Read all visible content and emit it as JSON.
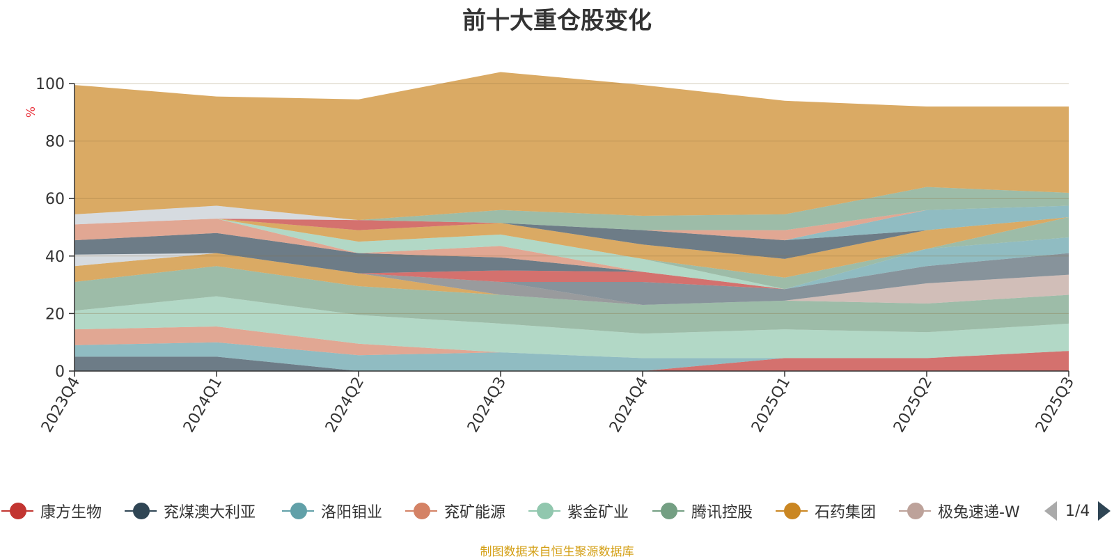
{
  "title": "前十大重仓股变化",
  "source_note": "制图数据来自恒生聚源数据库",
  "pager": {
    "text": "1/4"
  },
  "legend": [
    {
      "name": "康方生物",
      "color": "#c23531"
    },
    {
      "name": "兖煤澳大利亚",
      "color": "#2f4554"
    },
    {
      "name": "洛阳钼业",
      "color": "#61a0a8"
    },
    {
      "name": "兖矿能源",
      "color": "#d48265"
    },
    {
      "name": "紫金矿业",
      "color": "#91c7ae"
    },
    {
      "name": "腾讯控股",
      "color": "#749f83"
    },
    {
      "name": "石药集团",
      "color": "#ca8622"
    },
    {
      "name": "极兔速递-W",
      "color": "#bda29a"
    }
  ],
  "chart_data": {
    "type": "area",
    "stacked": true,
    "categories": [
      "2023Q4",
      "2024Q1",
      "2024Q2",
      "2024Q3",
      "2024Q4",
      "2025Q1",
      "2025Q2",
      "2025Q3"
    ],
    "ylabel": "%",
    "ylim": [
      0,
      100
    ],
    "yticks": [
      0,
      20,
      40,
      60,
      80,
      100
    ],
    "grid": true,
    "series": [
      {
        "color": "#c23531",
        "values": [
          0,
          0,
          0,
          0,
          0,
          4.5,
          4.5,
          7
        ]
      },
      {
        "color": "#2f4554",
        "values": [
          5,
          5,
          0,
          0,
          0,
          0,
          0,
          0
        ]
      },
      {
        "color": "#61a0a8",
        "values": [
          4,
          5,
          5.5,
          6.5,
          4.5,
          0,
          0,
          0
        ]
      },
      {
        "color": "#d48265",
        "values": [
          5.5,
          5.5,
          4,
          0,
          0,
          0,
          0,
          0
        ]
      },
      {
        "color": "#91c7ae",
        "values": [
          6.5,
          10.5,
          10,
          10,
          8.5,
          10,
          9,
          9.5
        ]
      },
      {
        "color": "#749f83",
        "values": [
          10,
          10.5,
          10,
          10,
          10,
          10,
          10,
          10
        ]
      },
      {
        "color": "#ca8622",
        "values": [
          5.5,
          4.5,
          4.5,
          0,
          0,
          0,
          0,
          0
        ]
      },
      {
        "color": "#bda29a",
        "values": [
          0,
          0,
          0,
          0,
          0,
          0,
          7,
          7
        ]
      },
      {
        "color": "#6e7074",
        "values": [
          0,
          0,
          0,
          4.5,
          0,
          0,
          0,
          0
        ]
      },
      {
        "color": "#546570",
        "values": [
          0,
          0,
          0,
          0,
          8,
          4,
          6,
          7.5
        ]
      },
      {
        "color": "#c4ccd3",
        "values": [
          4,
          0,
          0,
          0,
          0,
          0,
          0,
          0
        ]
      },
      {
        "color": "#c23531",
        "values": [
          0,
          0,
          0,
          4,
          3.5,
          0,
          0,
          0
        ]
      },
      {
        "color": "#2f4554",
        "values": [
          5,
          7,
          7,
          4.5,
          0,
          0,
          0,
          0
        ]
      },
      {
        "color": "#61a0a8",
        "values": [
          0,
          0,
          0,
          0,
          0,
          0,
          6,
          5.5
        ]
      },
      {
        "color": "#d48265",
        "values": [
          5.5,
          5,
          0,
          4,
          0,
          0,
          0,
          0
        ]
      },
      {
        "color": "#91c7ae",
        "values": [
          0,
          0,
          4,
          4,
          4.5,
          0,
          0,
          0
        ]
      },
      {
        "color": "#749f83",
        "values": [
          0,
          0,
          0,
          0,
          0,
          4,
          0,
          7
        ]
      },
      {
        "color": "#ca8622",
        "values": [
          0,
          0,
          4,
          4,
          5,
          6.5,
          6.5,
          0
        ]
      },
      {
        "color": "#bda29a",
        "values": [
          0,
          0,
          0,
          0,
          0,
          0,
          0,
          0
        ]
      },
      {
        "color": "#6e7074",
        "values": [
          0,
          0,
          0,
          0,
          0,
          0,
          0,
          0
        ]
      },
      {
        "color": "#546570",
        "values": [
          0,
          0,
          0,
          0,
          0,
          0,
          0,
          0
        ]
      },
      {
        "color": "#c4ccd3",
        "values": [
          0,
          0,
          0,
          0,
          0,
          0,
          0,
          0
        ]
      },
      {
        "color": "#c23531",
        "values": [
          0,
          0,
          3.5,
          0,
          0,
          0,
          0,
          0
        ]
      },
      {
        "color": "#2f4554",
        "values": [
          0,
          0,
          0,
          0,
          5,
          6.5,
          0,
          0
        ]
      },
      {
        "color": "#61a0a8",
        "values": [
          0,
          0,
          0,
          0,
          0,
          0,
          7,
          4
        ]
      },
      {
        "color": "#d48265",
        "values": [
          0,
          0,
          0,
          0,
          0,
          3.5,
          0,
          0
        ]
      },
      {
        "color": "#91c7ae",
        "values": [
          0,
          0,
          0,
          0,
          0,
          0,
          0,
          0
        ]
      },
      {
        "color": "#749f83",
        "values": [
          0,
          0,
          0,
          4.5,
          5,
          5.5,
          8,
          4.5
        ]
      },
      {
        "color": "#c4ccd3",
        "values": [
          3.5,
          4.5,
          0,
          0,
          0,
          0,
          0,
          0
        ]
      },
      {
        "color": "#ca8622",
        "values": [
          45,
          38,
          42,
          48,
          45.5,
          39.5,
          28,
          30
        ]
      }
    ]
  }
}
